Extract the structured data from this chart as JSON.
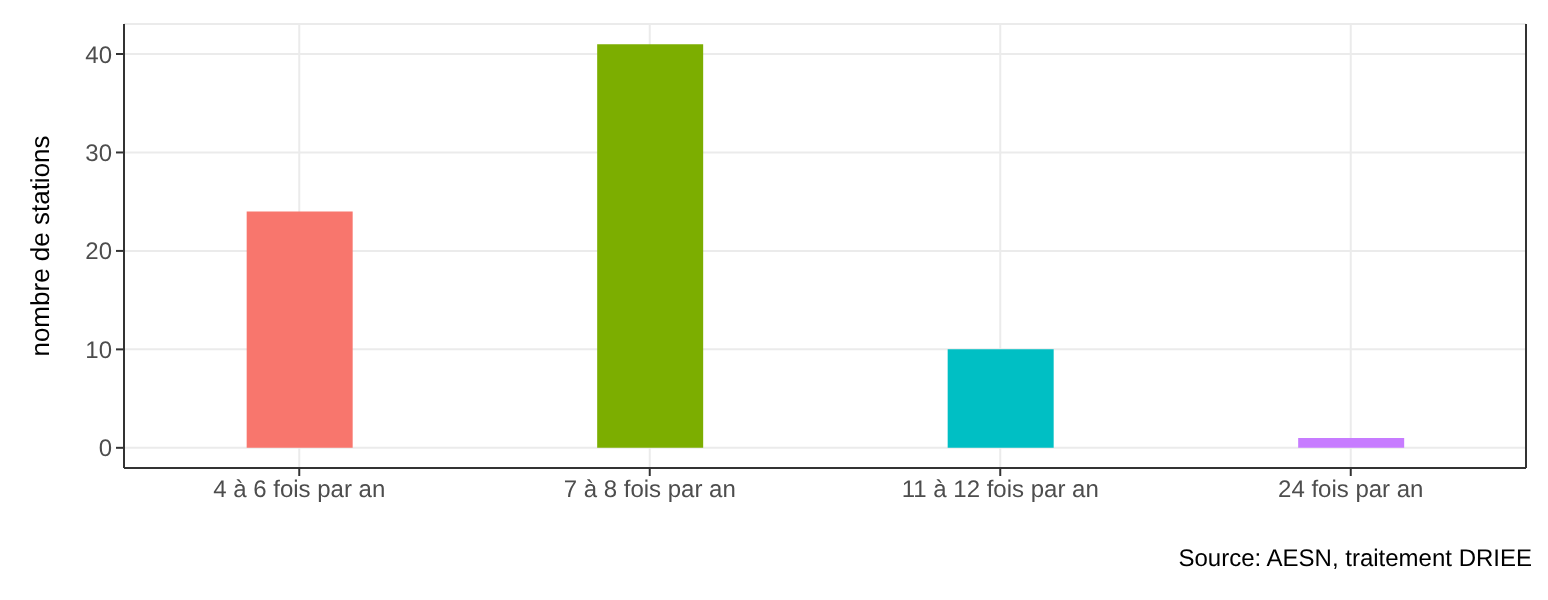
{
  "chart_data": {
    "type": "bar",
    "ylabel": "nombre de stations",
    "categories": [
      "4 à 6 fois par an",
      "7 à 8 fois par an",
      "11 à 12 fois par an",
      "24 fois par an"
    ],
    "values": [
      24,
      41,
      10,
      1
    ],
    "colors": [
      "#f8766d",
      "#7cae00",
      "#00bfc4",
      "#c77cff"
    ],
    "ylim": [
      -2.05,
      43.05
    ],
    "yticks": [
      0,
      10,
      20,
      30,
      40
    ],
    "grid": true,
    "annotations": [
      "Source: AESN, traitement DRIEE"
    ]
  }
}
